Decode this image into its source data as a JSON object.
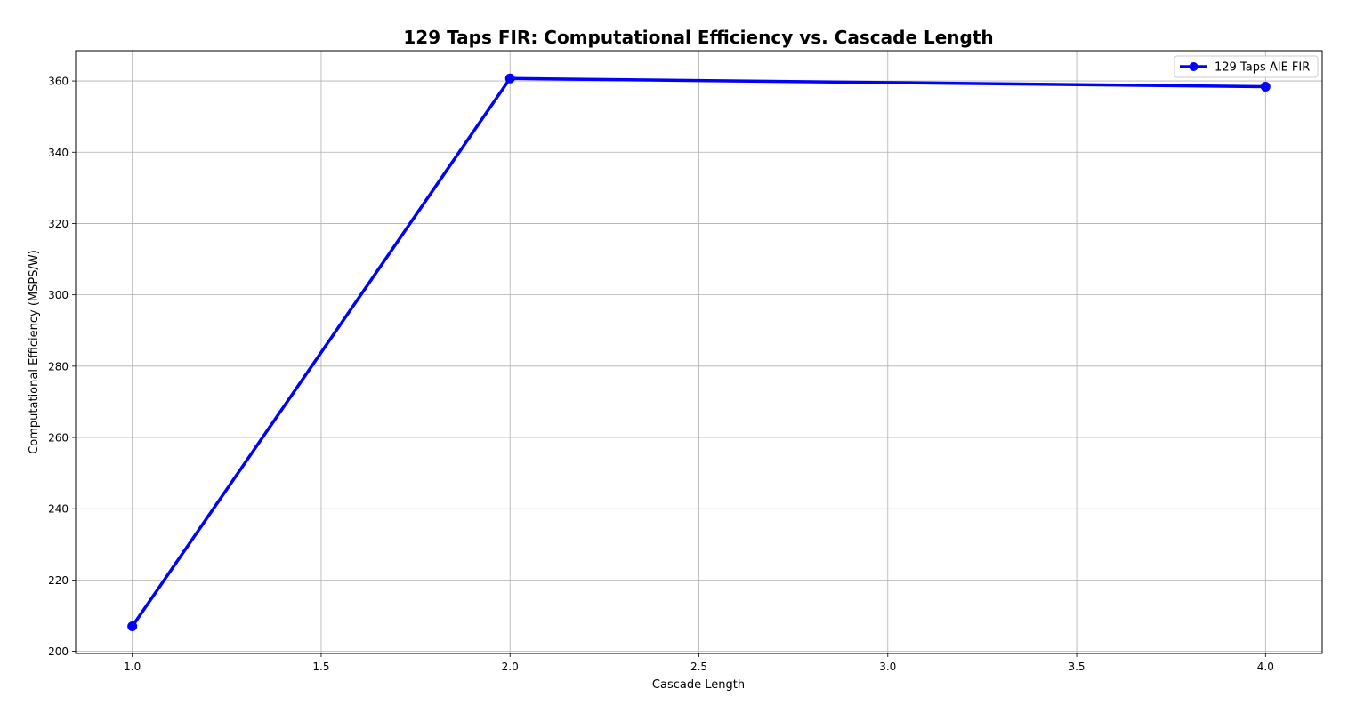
{
  "chart_data": {
    "type": "line",
    "title": "129 Taps FIR: Computational Efficiency vs. Cascade Length",
    "xlabel": "Cascade Length",
    "ylabel": "Computational Efficiency (MSPS/W)",
    "x": [
      1.0,
      2.0,
      4.0
    ],
    "series": [
      {
        "name": "129 Taps AIE FIR",
        "values": [
          207.0,
          360.7,
          358.4
        ],
        "color": "#0000ff",
        "marker": "circle"
      }
    ],
    "xlim": [
      0.85,
      4.15
    ],
    "ylim": [
      199.4,
      368.5
    ],
    "x_ticks": [
      1.0,
      1.5,
      2.0,
      2.5,
      3.0,
      3.5,
      4.0
    ],
    "x_tick_labels": [
      "1.0",
      "1.5",
      "2.0",
      "2.5",
      "3.0",
      "3.5",
      "4.0"
    ],
    "y_ticks": [
      200,
      220,
      240,
      260,
      280,
      300,
      320,
      340,
      360
    ],
    "y_tick_labels": [
      "200",
      "220",
      "240",
      "260",
      "280",
      "300",
      "320",
      "340",
      "360"
    ],
    "grid": true,
    "legend_position": "top-right"
  }
}
